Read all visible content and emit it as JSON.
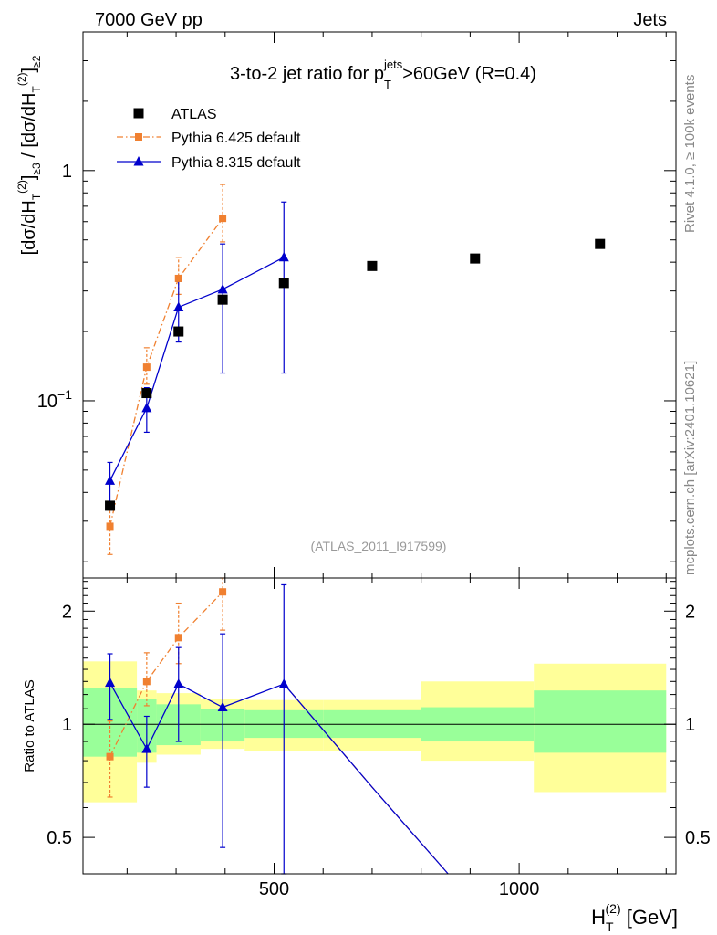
{
  "header": {
    "left": "7000 GeV pp",
    "right": "Jets"
  },
  "side_labels": {
    "rivet": "Rivet 4.1.0, ≥ 100k events",
    "mcplots": "mcplots.cern.ch [arXiv:2401.10621]"
  },
  "colors": {
    "atlas": "#000000",
    "pythia6": "#f08030",
    "pythia8": "#0000cc",
    "band_inner": "#99ff99",
    "band_outer": "#ffff99",
    "watermark": "#999999"
  },
  "chart_data": {
    "type": "scatter",
    "title": {
      "pre": "3-to-2 jet ratio for p",
      "sup": "jets",
      "sub": "T",
      "post": ">60GeV (R=0.4)"
    },
    "watermark": "(ATLAS_2011_I917599)",
    "xlabel": {
      "main": "H",
      "sub": "T",
      "sup": "(2)",
      "unit": " [GeV]"
    },
    "ylabel": "[dσ/dH_T^(2)]_{≥3} / [dσ/dH_T^(2)]_{≥2}",
    "ratio_ylabel": "Ratio to ATLAS",
    "x_scale": "linear",
    "xlim": [
      110,
      1320
    ],
    "x_ticks": [
      500,
      1000
    ],
    "x_tick_labels": [
      "500",
      "1000"
    ],
    "main": {
      "y_scale": "log",
      "ylim": [
        0.017,
        4.0
      ],
      "y_tick_labels": [
        {
          "value": 0.1,
          "base": "10",
          "exp": "−1"
        },
        {
          "value": 1,
          "base": "1",
          "exp": ""
        }
      ]
    },
    "ratio": {
      "y_scale": "log",
      "ylim": [
        0.4,
        2.45
      ],
      "y_ticks": [
        0.5,
        1,
        2
      ],
      "y_tick_labels": [
        "0.5",
        "1",
        "2"
      ]
    },
    "legend": [
      {
        "name": "ATLAS",
        "marker": "square",
        "style": "points"
      },
      {
        "name": "Pythia 6.425 default",
        "marker": "small-square",
        "style": "dashdot"
      },
      {
        "name": "Pythia 8.315 default",
        "marker": "triangle",
        "style": "solid"
      }
    ],
    "series": [
      {
        "name": "ATLAS",
        "bins": [
          [
            110,
            220
          ],
          [
            220,
            260
          ],
          [
            260,
            350
          ],
          [
            350,
            440
          ],
          [
            440,
            600
          ],
          [
            600,
            800
          ],
          [
            800,
            1030
          ],
          [
            1030,
            1300
          ]
        ],
        "x": [
          165,
          240,
          305,
          395,
          520,
          700,
          910,
          1165
        ],
        "y": [
          0.035,
          0.108,
          0.2,
          0.275,
          0.325,
          0.385,
          0.415,
          0.48
        ],
        "band_inner": [
          [
            0.82,
            1.25
          ],
          [
            0.84,
            1.17
          ],
          [
            0.88,
            1.13
          ],
          [
            0.9,
            1.1
          ],
          [
            0.92,
            1.09
          ],
          [
            0.92,
            1.09
          ],
          [
            0.9,
            1.11
          ],
          [
            0.84,
            1.23
          ]
        ],
        "band_outer": [
          [
            0.62,
            1.47
          ],
          [
            0.79,
            1.23
          ],
          [
            0.83,
            1.21
          ],
          [
            0.86,
            1.17
          ],
          [
            0.85,
            1.16
          ],
          [
            0.85,
            1.16
          ],
          [
            0.8,
            1.3
          ],
          [
            0.66,
            1.45
          ]
        ]
      },
      {
        "name": "Pythia 6.425 default",
        "x": [
          165,
          240,
          305,
          395
        ],
        "y": [
          0.0285,
          0.14,
          0.34,
          0.62
        ],
        "err_lo": [
          0.0215,
          0.118,
          0.29,
          0.49
        ],
        "err_hi": [
          0.036,
          0.17,
          0.42,
          0.87
        ],
        "ratio": [
          0.82,
          1.3,
          1.7,
          2.25
        ],
        "ratio_lo": [
          0.64,
          1.12,
          1.45,
          1.78
        ],
        "ratio_hi": [
          1.02,
          1.55,
          2.1,
          3.16
        ]
      },
      {
        "name": "Pythia 8.315 default",
        "x": [
          165,
          240,
          305,
          395,
          520
        ],
        "y": [
          0.045,
          0.093,
          0.255,
          0.305,
          0.42
        ],
        "err_lo": [
          0.036,
          0.073,
          0.18,
          0.132,
          0.132
        ],
        "err_hi": [
          0.054,
          0.114,
          0.33,
          0.48,
          0.73
        ],
        "ratio": [
          1.29,
          0.86,
          1.28,
          1.11,
          1.28
        ],
        "ratio_lo": [
          1.03,
          0.68,
          0.9,
          0.47,
          0.4
        ],
        "ratio_hi": [
          1.54,
          1.05,
          1.6,
          1.74,
          2.35
        ]
      }
    ],
    "ratio_tail": {
      "x": [
        520,
        700,
        855
      ],
      "y": [
        1.28,
        0.68,
        0.4
      ]
    }
  }
}
